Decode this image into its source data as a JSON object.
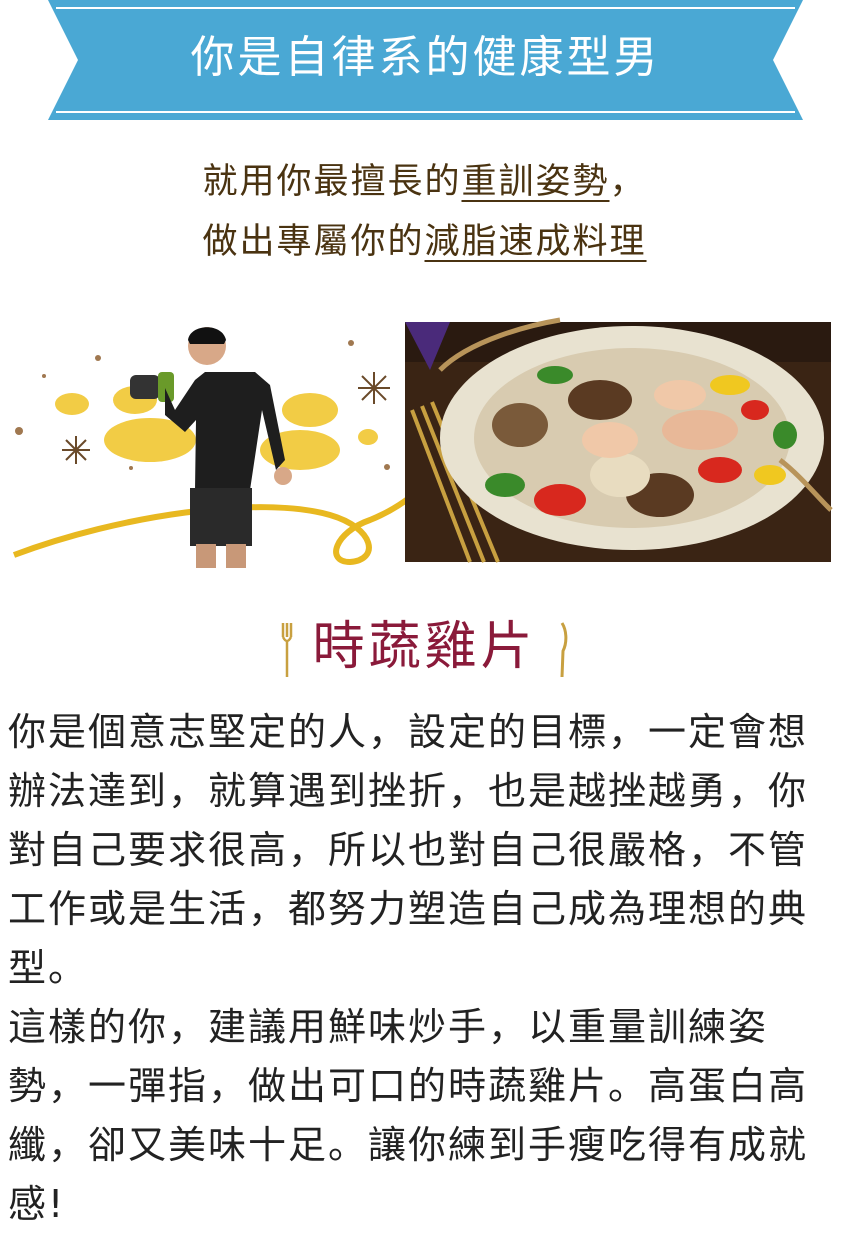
{
  "header": {
    "title": "你是自律系的健康型男"
  },
  "subtitle": {
    "line1_prefix": "就用你最擅長的",
    "line1_highlight": "重訓姿勢",
    "line1_suffix": "，",
    "line2_prefix": "做出專屬你的",
    "line2_highlight": "減脂速成料理"
  },
  "dish": {
    "name": "時蔬雞片"
  },
  "description": {
    "paragraph1": "你是個意志堅定的人，設定的目標，一定會想辦法達到，就算遇到挫折，也是越挫越勇，你對自己要求很高，所以也對自己很嚴格，不管工作或是生活，都努力塑造自己成為理想的典型。",
    "paragraph2": "這樣的你，建議用鮮味炒手，以重量訓練姿勢，一彈指，做出可口的時蔬雞片。高蛋白高纖，卻又美味十足。讓你練到手瘦吃得有成就感!"
  },
  "colors": {
    "banner": "#4aa8d4",
    "subtitle_text": "#4a3311",
    "dish_title": "#8a1a3a",
    "gold_accent": "#e8b820"
  }
}
